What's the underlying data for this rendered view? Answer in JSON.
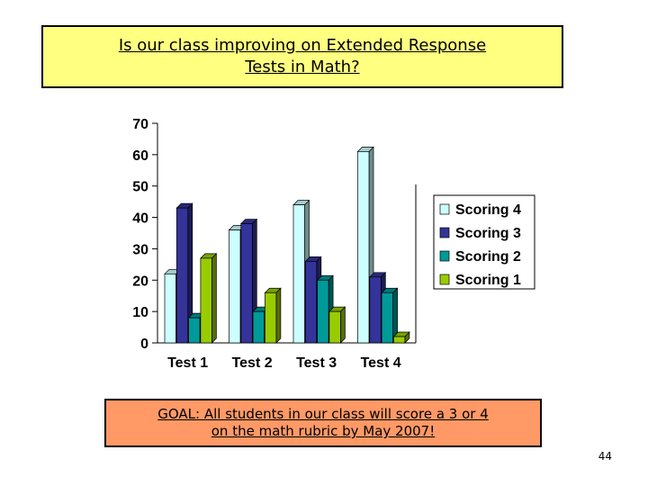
{
  "title": {
    "line1": "Is our class improving on Extended Response",
    "line2": "Tests in Math?"
  },
  "goal": {
    "line1": "GOAL: All students in our class will score a 3 or 4",
    "line2": "on the math rubric by May 2007!"
  },
  "page_number": "44",
  "chart_data": {
    "type": "bar",
    "categories": [
      "Test 1",
      "Test 2",
      "Test 3",
      "Test 4"
    ],
    "series": [
      {
        "name": "Scoring 4",
        "values": [
          22,
          36,
          44,
          61
        ],
        "color": "#ccffff"
      },
      {
        "name": "Scoring 3",
        "values": [
          43,
          38,
          26,
          21
        ],
        "color": "#333399"
      },
      {
        "name": "Scoring 2",
        "values": [
          8,
          10,
          20,
          16
        ],
        "color": "#009999"
      },
      {
        "name": "Scoring 1",
        "values": [
          27,
          16,
          10,
          2
        ],
        "color": "#99cc00"
      }
    ],
    "ylim": [
      0,
      70
    ],
    "yticks": [
      0,
      10,
      20,
      30,
      40,
      50,
      60,
      70
    ],
    "grid": false,
    "legend": "right",
    "title": "",
    "xlabel": "",
    "ylabel": ""
  }
}
